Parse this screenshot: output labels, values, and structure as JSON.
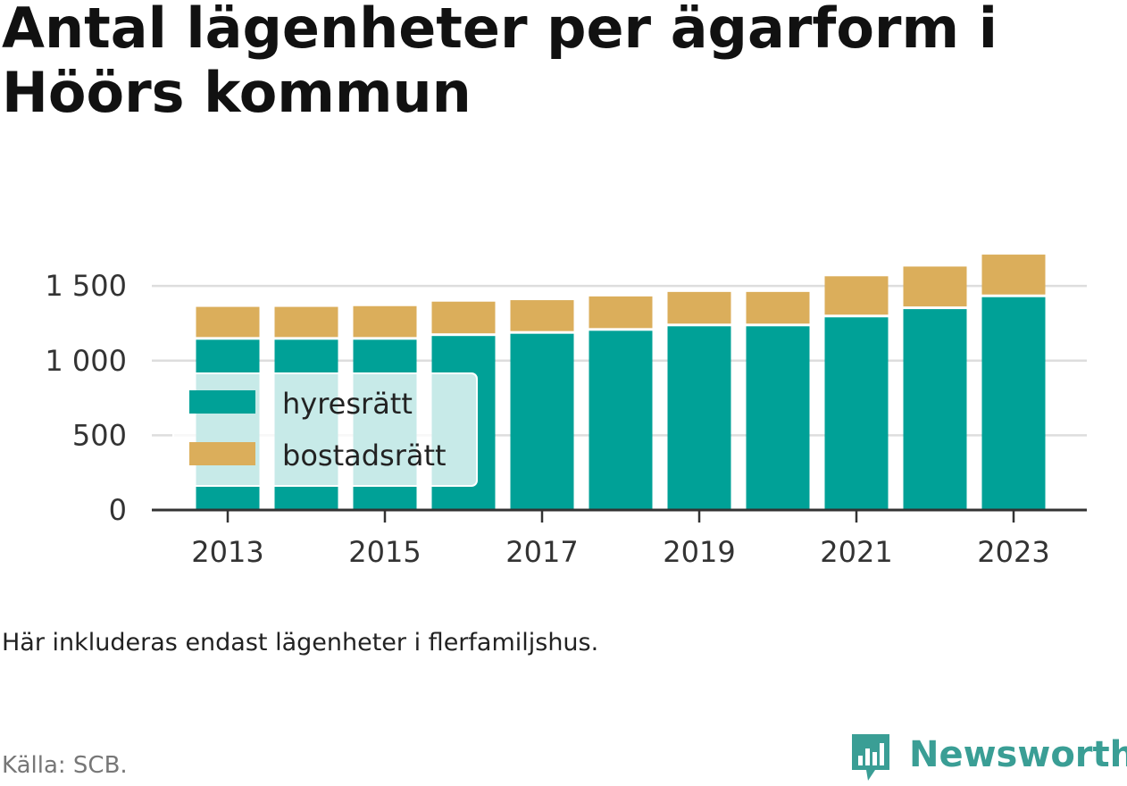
{
  "title": "Antal lägenheter per ägarform i Höörs kommun",
  "note": "Här inkluderas endast lägenheter i flerfamiljshus.",
  "source": "Källa: SCB.",
  "brand": {
    "name": "Newsworthy",
    "icon": "newsworthy-logo-icon"
  },
  "colors": {
    "hyresratt": "#00a197",
    "bostadsratt": "#dbae5b",
    "grid": "#dddddd",
    "axis": "#333333"
  },
  "chart_data": {
    "type": "bar",
    "stacked": true,
    "x": [
      2013,
      2014,
      2015,
      2016,
      2017,
      2018,
      2019,
      2020,
      2021,
      2022,
      2023
    ],
    "x_tick_labels": [
      "2013",
      "2015",
      "2017",
      "2019",
      "2021",
      "2023"
    ],
    "y_tick_labels": [
      "0",
      "500",
      "1 000",
      "1 500"
    ],
    "y_ticks": [
      0,
      500,
      1000,
      1500
    ],
    "ylim": [
      0,
      1800
    ],
    "grid": true,
    "legend_position": "left",
    "series": [
      {
        "name": "hyresrätt",
        "color": "#00a197",
        "values": [
          1140,
          1140,
          1140,
          1165,
          1180,
          1200,
          1230,
          1230,
          1290,
          1345,
          1425
        ]
      },
      {
        "name": "bostadsrätt",
        "color": "#dbae5b",
        "values": [
          220,
          220,
          225,
          230,
          225,
          230,
          230,
          230,
          275,
          285,
          285
        ]
      }
    ]
  }
}
